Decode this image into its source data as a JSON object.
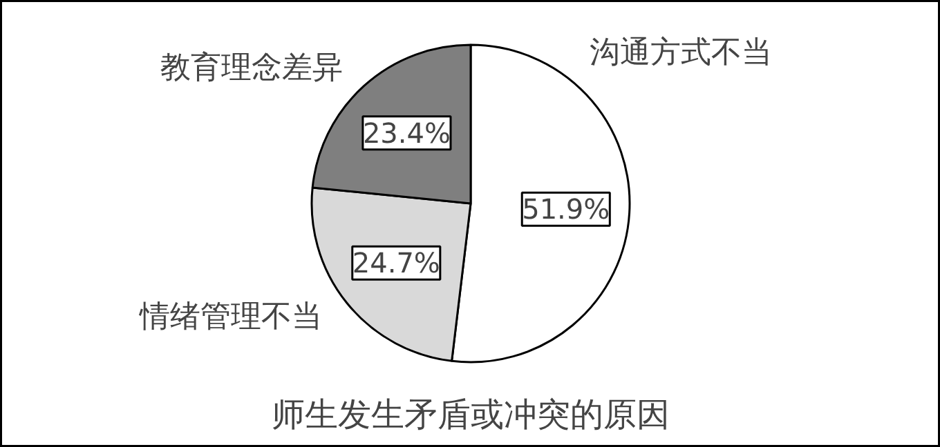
{
  "chart_data": {
    "type": "pie",
    "title": "师生发生矛盾或冲突的原因",
    "categories": [
      "沟通方式不当",
      "情绪管理不当",
      "教育理念差异"
    ],
    "values": [
      51.9,
      24.7,
      23.4
    ],
    "colors": [
      "#ffffff",
      "#d9d9d9",
      "#7f7f7f"
    ],
    "value_labels": [
      "51.9%",
      "24.7%",
      "23.4%"
    ]
  }
}
